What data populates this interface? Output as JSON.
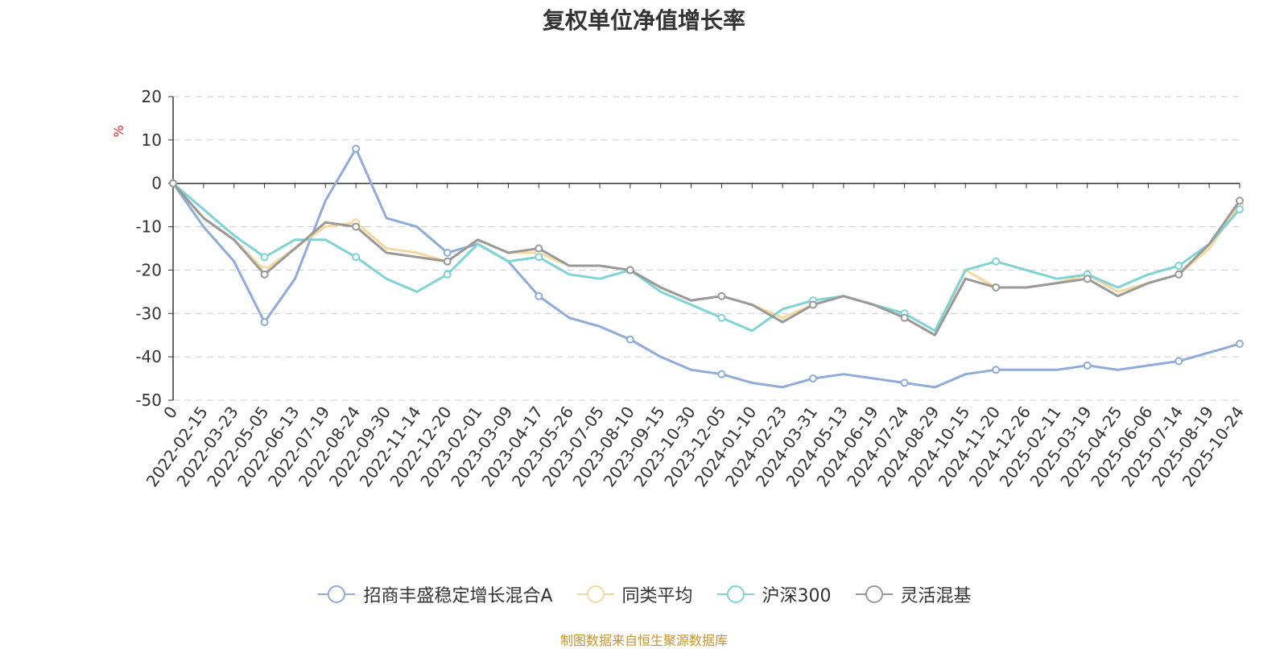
{
  "chart_data": {
    "type": "line",
    "title": "复权单位净值增长率",
    "ylabel": "%",
    "ylim": [
      -50,
      20
    ],
    "yticks": [
      20,
      10,
      0,
      -10,
      -20,
      -30,
      -40,
      -50
    ],
    "grid": true,
    "legend_position": "bottom-center",
    "categories": [
      "0",
      "2022-02-15",
      "2022-03-23",
      "2022-05-05",
      "2022-06-13",
      "2022-07-19",
      "2022-08-24",
      "2022-09-30",
      "2022-11-14",
      "2022-12-20",
      "2023-02-01",
      "2023-03-09",
      "2023-04-17",
      "2023-05-26",
      "2023-07-05",
      "2023-08-10",
      "2023-09-15",
      "2023-10-30",
      "2023-12-05",
      "2024-01-10",
      "2024-02-23",
      "2024-03-31",
      "2024-05-13",
      "2024-06-19",
      "2024-07-24",
      "2024-08-29",
      "2024-10-15",
      "2024-11-20",
      "2024-12-26",
      "2025-02-11",
      "2025-03-19",
      "2025-04-25",
      "2025-06-06",
      "2025-07-14",
      "2025-08-19",
      "2025-10-24"
    ],
    "series": [
      {
        "name": "招商丰盛稳定增长混合A",
        "color": "#8eabdb",
        "values": [
          0,
          -10,
          -18,
          -32,
          -22,
          -4,
          8,
          -8,
          -10,
          -16,
          -14,
          -18,
          -26,
          -31,
          -33,
          -36,
          -40,
          -43,
          -44,
          -46,
          -47,
          -45,
          -44,
          -45,
          -46,
          -47,
          -44,
          -43,
          -43,
          -43,
          -42,
          -43,
          -42,
          -41,
          -39,
          -37
        ]
      },
      {
        "name": "同类平均",
        "color": "#f7d89c",
        "values": [
          0,
          -8,
          -13,
          -20,
          -15,
          -10,
          -9,
          -15,
          -16,
          -18,
          -13,
          -16,
          -16,
          -19,
          -19,
          -20,
          -24,
          -27,
          -26,
          -28,
          -31,
          -28,
          -26,
          -28,
          -31,
          -35,
          -20,
          -24,
          -24,
          -23,
          -21,
          -25,
          -23,
          -21,
          -15,
          -5
        ]
      },
      {
        "name": "沪深300",
        "color": "#7fd3d6",
        "values": [
          0,
          -6,
          -12,
          -17,
          -13,
          -13,
          -17,
          -22,
          -25,
          -21,
          -14,
          -18,
          -17,
          -21,
          -22,
          -20,
          -25,
          -28,
          -31,
          -34,
          -29,
          -27,
          -26,
          -28,
          -30,
          -34,
          -20,
          -18,
          -20,
          -22,
          -21,
          -24,
          -21,
          -19,
          -14,
          -6
        ]
      },
      {
        "name": "灵活混基",
        "color": "#999999",
        "values": [
          0,
          -8,
          -13,
          -21,
          -15,
          -9,
          -10,
          -16,
          -17,
          -18,
          -13,
          -16,
          -15,
          -19,
          -19,
          -20,
          -24,
          -27,
          -26,
          -28,
          -32,
          -28,
          -26,
          -28,
          -31,
          -35,
          -22,
          -24,
          -24,
          -23,
          -22,
          -26,
          -23,
          -21,
          -14,
          -4
        ]
      }
    ]
  },
  "source_note": "制图数据来自恒生聚源数据库"
}
